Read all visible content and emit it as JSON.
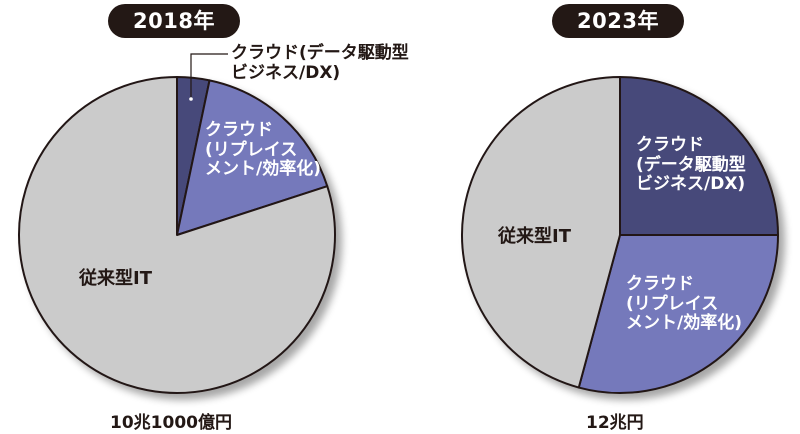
{
  "colors": {
    "data_driven": "#474a7a",
    "replacement": "#7479bb",
    "legacy": "#cbcbcb",
    "outline": "#231815",
    "badge_bg": "#231815"
  },
  "charts": {
    "left": {
      "year_badge": "2018年",
      "total_label": "10兆1000億円",
      "labels": {
        "data_driven_line1": "クラウド(データ駆動型",
        "data_driven_line2": "ビジネス/DX)",
        "replacement_line1": "クラウド",
        "replacement_line2": "(リプレイス",
        "replacement_line3": "メント/効率化)",
        "legacy": "従来型IT"
      }
    },
    "right": {
      "year_badge": "2023年",
      "total_label": "12兆円",
      "labels": {
        "data_driven_line1": "クラウド",
        "data_driven_line2": "(データ駆動型",
        "data_driven_line3": "ビジネス/DX)",
        "replacement_line1": "クラウド",
        "replacement_line2": "(リプレイス",
        "replacement_line3": "メント/効率化)",
        "legacy": "従来型IT"
      }
    }
  },
  "chart_data": [
    {
      "type": "pie",
      "title": "2018年",
      "total": "10兆1000億円",
      "categories": [
        "クラウド(データ駆動型ビジネス/DX)",
        "クラウド(リプレイスメント/効率化)",
        "従来型IT"
      ],
      "values": [
        3.3,
        16.7,
        80.0
      ],
      "unit": "% (estimated from slice angles)",
      "start_angle": "12 o'clock, clockwise"
    },
    {
      "type": "pie",
      "title": "2023年",
      "total": "12兆円",
      "categories": [
        "クラウド(データ駆動型ビジネス/DX)",
        "クラウド(リプレイスメント/効率化)",
        "従来型IT"
      ],
      "values": [
        25.0,
        29.2,
        45.8
      ],
      "unit": "% (estimated from slice angles)",
      "start_angle": "12 o'clock, clockwise"
    }
  ]
}
